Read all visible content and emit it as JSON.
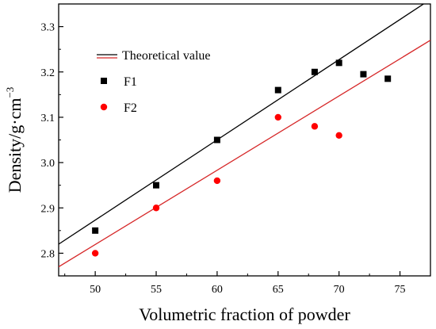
{
  "chart_data": {
    "type": "scatter",
    "xlabel": "Volumetric fraction of powder",
    "ylabel": "Density/g·cm",
    "ylabel_superscript": "−3",
    "xlim": [
      47,
      77.5
    ],
    "ylim": [
      2.75,
      3.35
    ],
    "x_ticks": [
      50,
      55,
      60,
      65,
      70,
      75
    ],
    "y_ticks": [
      2.8,
      2.9,
      3.0,
      3.1,
      3.2,
      3.3
    ],
    "x_tick_labels": [
      "50",
      "55",
      "60",
      "65",
      "70",
      "75"
    ],
    "y_tick_labels": [
      "2.8",
      "2.9",
      "3.0",
      "3.1",
      "3.2",
      "3.3"
    ],
    "legend_position": "top-left",
    "grid": false,
    "lines": [
      {
        "name": "Theoretical value",
        "color": "#000000",
        "x": [
          47,
          77.5
        ],
        "y": [
          2.82,
          3.36
        ]
      },
      {
        "color": "#d62728",
        "x": [
          47,
          77.5
        ],
        "y": [
          2.77,
          3.27
        ]
      }
    ],
    "series": [
      {
        "name": "F1",
        "marker": "square",
        "color": "#000000",
        "x": [
          50,
          55,
          60,
          65,
          68,
          70,
          72,
          74
        ],
        "y": [
          2.85,
          2.95,
          3.05,
          3.16,
          3.2,
          3.22,
          3.195,
          3.185
        ]
      },
      {
        "name": "F2",
        "marker": "circle",
        "color": "#ff0000",
        "x": [
          50,
          55,
          60,
          65,
          68,
          70
        ],
        "y": [
          2.8,
          2.9,
          2.96,
          3.1,
          3.08,
          3.06
        ]
      }
    ],
    "legend": [
      {
        "label": "Theoretical value",
        "kind": "line",
        "color": "#000000"
      },
      {
        "label": "F1",
        "kind": "square",
        "color": "#000000"
      },
      {
        "label": "F2",
        "kind": "circle",
        "color": "#ff0000"
      }
    ]
  }
}
